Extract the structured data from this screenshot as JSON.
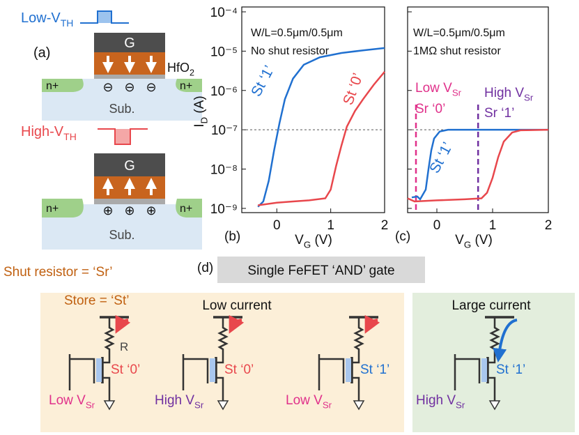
{
  "panel_a": {
    "label": "(a)",
    "low_vth": [
      {
        "t": "Low-V"
      },
      {
        "t": "TH",
        "sub": true
      }
    ],
    "high_vth": [
      {
        "t": "High-V"
      },
      {
        "t": "TH",
        "sub": true
      }
    ],
    "gate": "G",
    "oxide": [
      {
        "t": "HfO"
      },
      {
        "t": "2",
        "sub": true
      }
    ],
    "substrate": "Sub.",
    "source_drain": "n+",
    "charge_neg": "⊖",
    "charge_pos": "⊕"
  },
  "chart_data": [
    {
      "type": "line",
      "label": "(b)",
      "x_label": [
        {
          "t": "V"
        },
        {
          "t": "G",
          "sub": true
        },
        {
          "t": " (V)"
        }
      ],
      "y_label": [
        {
          "t": "I"
        },
        {
          "t": "D",
          "sub": true
        },
        {
          "t": " (A)"
        }
      ],
      "xlim": [
        -0.65,
        2
      ],
      "ylim": [
        7.8e-10,
        0.000133
      ],
      "log_y": true,
      "xticks": [
        0,
        1,
        2
      ],
      "yticks": [
        {
          "value": 1e-09,
          "label": "10⁻⁹"
        },
        {
          "value": 1e-08,
          "label": "10⁻⁸"
        },
        {
          "value": 1e-07,
          "label": "10⁻⁷"
        },
        {
          "value": 1e-06,
          "label": "10⁻⁶"
        },
        {
          "value": 1e-05,
          "label": "10⁻⁵"
        },
        {
          "value": 0.0001,
          "label": "10⁻⁴"
        }
      ],
      "ref_y": 1e-07,
      "annotations": [
        "W/L=0.5μm/0.5μm",
        "No shut resistor"
      ],
      "series": [
        {
          "name": "St ‘1’",
          "color": "#2070d0",
          "x": [
            -0.35,
            -0.25,
            -0.15,
            -0.05,
            0.05,
            0.15,
            0.3,
            0.5,
            0.8,
            1.2,
            1.6,
            2
          ],
          "values": [
            1.1e-09,
            1.5e-09,
            5e-09,
            3e-08,
            1.5e-07,
            6e-07,
            2e-06,
            4.5e-06,
            7e-06,
            9e-06,
            1.05e-05,
            1.2e-05
          ]
        },
        {
          "name": "St ‘0’",
          "color": "#e8474c",
          "x": [
            -0.35,
            0,
            0.3,
            0.6,
            0.9,
            1.0,
            1.1,
            1.2,
            1.3,
            1.45,
            1.6,
            1.8,
            2
          ],
          "values": [
            1.2e-09,
            1.4e-09,
            1.5e-09,
            1.6e-09,
            1.8e-09,
            3e-09,
            1.2e-08,
            4e-08,
            1.2e-07,
            3e-07,
            6e-07,
            1.4e-06,
            3e-06
          ]
        }
      ]
    },
    {
      "type": "line",
      "label": "(c)",
      "x_label": [
        {
          "t": "V"
        },
        {
          "t": "G",
          "sub": true
        },
        {
          "t": " (V)"
        }
      ],
      "xlim": [
        -0.525,
        2
      ],
      "ylim": [
        7.8e-10,
        0.000133
      ],
      "log_y": true,
      "xticks": [
        0,
        1,
        2
      ],
      "yticks": [
        1e-09,
        1e-08,
        1e-07,
        1e-06,
        1e-05,
        0.0001
      ],
      "ref_y": 1e-07,
      "annotations": [
        "W/L=0.5μm/0.5μm",
        "1MΩ shut resistor"
      ],
      "vlines": [
        {
          "x": -0.375,
          "color": "#e0308a",
          "label": [
            {
              "t": "Low V"
            },
            {
              "t": "Sr",
              "sub": true
            }
          ],
          "state": "Sr ‘0’"
        },
        {
          "x": 0.74,
          "color": "#7030a0",
          "label": [
            {
              "t": "High V"
            },
            {
              "t": "Sr",
              "sub": true
            }
          ],
          "state": "Sr ‘1’"
        }
      ],
      "series": [
        {
          "name": "St ‘1’",
          "color": "#2070d0",
          "x": [
            -0.45,
            -0.35,
            -0.3,
            -0.2,
            -0.15,
            -0.1,
            -0.05,
            0.05,
            0.2,
            0.5,
            2
          ],
          "values": [
            1.9e-09,
            2e-09,
            1.7e-09,
            3e-09,
            1e-08,
            3e-08,
            6e-08,
            9e-08,
            1e-07,
            1e-07,
            1e-07
          ]
        },
        {
          "color": "#e8474c",
          "x": [
            -0.525,
            -0.4,
            0,
            0.5,
            0.8,
            0.9,
            1.0,
            1.1,
            1.2,
            1.35,
            1.5,
            2
          ],
          "values": [
            1.8e-09,
            1.5e-09,
            1.6e-09,
            1.7e-09,
            1.8e-09,
            2.5e-09,
            6e-09,
            2e-08,
            5e-08,
            8.5e-08,
            9.7e-08,
            1e-07
          ]
        }
      ]
    }
  ],
  "panel_d": {
    "label": "(d)",
    "legend_sr": "Shut resistor = ‘Sr’",
    "legend_st": "Store = ‘St’",
    "title": "Single FeFET ‘AND’ gate",
    "low_current": "Low current",
    "large_current": "Large current",
    "resistor": "R",
    "circuits": [
      {
        "state": "St ‘0’",
        "input": [
          {
            "t": "Low V"
          },
          {
            "t": "Sr",
            "sub": true
          }
        ]
      },
      {
        "state": "St ‘0’",
        "input": [
          {
            "t": "High V"
          },
          {
            "t": "Sr",
            "sub": true
          }
        ]
      },
      {
        "state": "St ‘1’",
        "input": [
          {
            "t": "Low V"
          },
          {
            "t": "Sr",
            "sub": true
          }
        ]
      },
      {
        "state": "St ‘1’",
        "input": [
          {
            "t": "High V"
          },
          {
            "t": "Sr",
            "sub": true
          }
        ]
      }
    ]
  }
}
